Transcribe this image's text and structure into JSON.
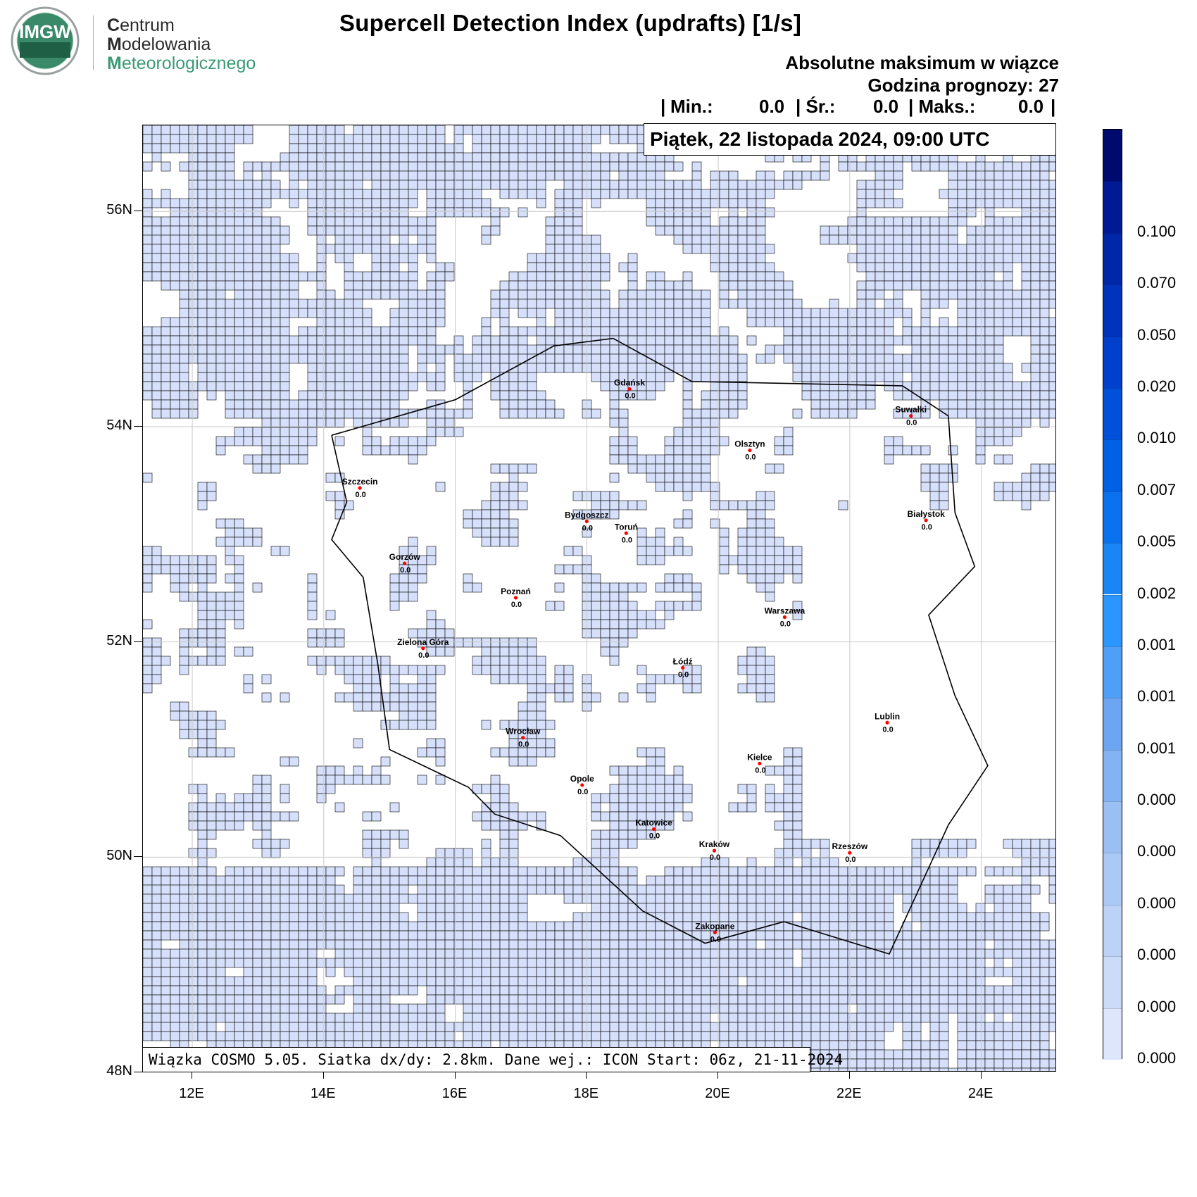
{
  "logo": {
    "emblem_text": "IMGW",
    "line1_cap": "C",
    "line1_rest": "entrum",
    "line2_cap": "M",
    "line2_rest": "odelowania",
    "line3_cap": "M",
    "line3_rest": "eteorologicznego"
  },
  "title": "Supercell Detection Index (updrafts) [1/s]",
  "subtitle": "Absolutne maksimum w wiązce",
  "forecast_hour": "Godzina prognozy: 27",
  "stats": {
    "open_bar": "|",
    "min_label": "Min.:",
    "min_value": "0.0",
    "avg_label": "| Śr.:",
    "avg_value": "0.0",
    "max_label": "| Maks.:",
    "max_value": "0.0",
    "close_bar": "|"
  },
  "date_label": "Piątek, 22 listopada 2024, 09:00 UTC",
  "info_text": "Wiązka COSMO 5.05. Siatka dx/dy: 2.8km. Dane wej.: ICON Start: 06z, 21-11-2024",
  "map": {
    "lon_range": [
      11.25,
      25.15
    ],
    "lat_range": [
      48.0,
      56.8
    ],
    "lat_ticks": [
      "56N",
      "54N",
      "52N",
      "50N",
      "48N"
    ],
    "lat_tick_values": [
      56,
      54,
      52,
      50,
      48
    ],
    "lon_ticks": [
      "12E",
      "14E",
      "16E",
      "18E",
      "20E",
      "22E",
      "24E"
    ],
    "lon_tick_values": [
      12,
      14,
      16,
      18,
      20,
      22,
      24
    ],
    "fill_color": "#d6e0fb",
    "land_color": "#ffffff",
    "grid_color": "#c8c8c8",
    "city_dot_color": "#ff0000"
  },
  "cities": [
    {
      "name": "Gdańsk",
      "value": "0.0",
      "lon": 18.65,
      "lat": 54.35
    },
    {
      "name": "Suwałki",
      "value": "0.0",
      "lon": 22.93,
      "lat": 54.1
    },
    {
      "name": "Olsztyn",
      "value": "0.0",
      "lon": 20.48,
      "lat": 53.78
    },
    {
      "name": "Szczecin",
      "value": "0.0",
      "lon": 14.55,
      "lat": 53.43
    },
    {
      "name": "Białystok",
      "value": "0.0",
      "lon": 23.16,
      "lat": 53.13
    },
    {
      "name": "Bydgoszcz",
      "value": "0.0",
      "lon": 18.0,
      "lat": 53.12
    },
    {
      "name": "Toruń",
      "value": "0.0",
      "lon": 18.6,
      "lat": 53.01
    },
    {
      "name": "Gorzów",
      "value": "0.0",
      "lon": 15.23,
      "lat": 52.73
    },
    {
      "name": "Poznań",
      "value": "0.0",
      "lon": 16.92,
      "lat": 52.41
    },
    {
      "name": "Warszawa",
      "value": "0.0",
      "lon": 21.01,
      "lat": 52.23
    },
    {
      "name": "Zielona Góra",
      "value": "0.0",
      "lon": 15.51,
      "lat": 51.94
    },
    {
      "name": "Łódź",
      "value": "0.0",
      "lon": 19.46,
      "lat": 51.76
    },
    {
      "name": "Lublin",
      "value": "0.0",
      "lon": 22.57,
      "lat": 51.25
    },
    {
      "name": "Wrocław",
      "value": "0.0",
      "lon": 17.03,
      "lat": 51.11
    },
    {
      "name": "Kielce",
      "value": "0.0",
      "lon": 20.63,
      "lat": 50.87
    },
    {
      "name": "Opole",
      "value": "0.0",
      "lon": 17.93,
      "lat": 50.67
    },
    {
      "name": "Katowice",
      "value": "0.0",
      "lon": 19.02,
      "lat": 50.26
    },
    {
      "name": "Kraków",
      "value": "0.0",
      "lon": 19.94,
      "lat": 50.06
    },
    {
      "name": "Rzeszów",
      "value": "0.0",
      "lon": 22.0,
      "lat": 50.04
    },
    {
      "name": "Zakopane",
      "value": "0.0",
      "lon": 19.95,
      "lat": 49.3
    }
  ],
  "colorbar": {
    "labels": [
      "0.100",
      "0.070",
      "0.050",
      "0.020",
      "0.010",
      "0.007",
      "0.005",
      "0.002",
      "0.001",
      "0.001",
      "0.001",
      "0.000",
      "0.000",
      "0.000",
      "0.000",
      "0.000",
      "0.000"
    ],
    "colors": [
      "#000a6e",
      "#001a96",
      "#0027a8",
      "#0033bb",
      "#0040cc",
      "#0050d9",
      "#0060e6",
      "#0a72ee",
      "#1a86f6",
      "#2b96ff",
      "#4f9ef7",
      "#6ca6f2",
      "#84b3f3",
      "#99bff3",
      "#aac9f5",
      "#bcd3f7",
      "#ccdbf8",
      "#dde6fb"
    ]
  }
}
